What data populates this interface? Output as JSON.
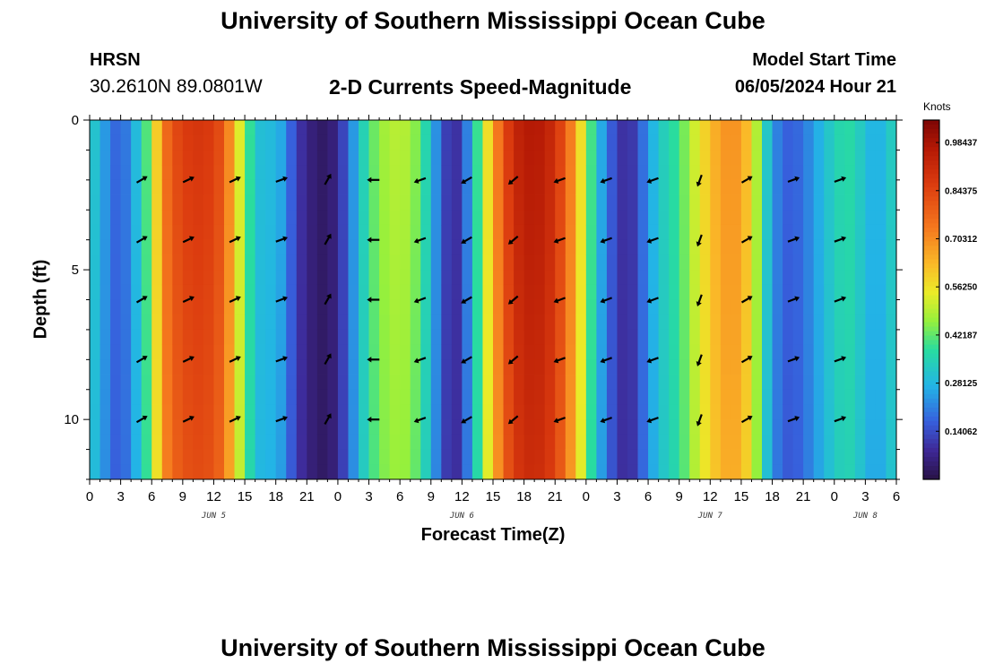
{
  "header": {
    "title": "University of Southern Mississippi Ocean Cube",
    "station": "HRSN",
    "coords": "30.2610N  89.0801W",
    "subtitle": "2-D Currents Speed-Magnitude",
    "start_label": "Model Start Time",
    "start_value": "06/05/2024 Hour 21"
  },
  "footer": {
    "title": "University of Southern Mississippi Ocean Cube"
  },
  "chart_data": {
    "type": "heatmap",
    "title": "2-D Currents Speed-Magnitude",
    "xlabel": "Forecast Time(Z)",
    "ylabel": "Depth (ft)",
    "units": "Knots",
    "x_hours_since_jun5_00z": [
      0,
      78
    ],
    "y_range_ft": [
      0,
      12
    ],
    "y_ticks": [
      "0",
      "5",
      "10"
    ],
    "y_tick_values": [
      0,
      5,
      10
    ],
    "x_tick_labels": [
      "0",
      "3",
      "6",
      "9",
      "12",
      "15",
      "18",
      "21",
      "0",
      "3",
      "6",
      "9",
      "12",
      "15",
      "18",
      "21",
      "0",
      "3",
      "6",
      "9",
      "12",
      "15",
      "18",
      "21",
      "0",
      "3",
      "6"
    ],
    "day_labels": [
      "JUN 5",
      "JUN 6",
      "JUN 7",
      "JUN 8"
    ],
    "day_label_hours": [
      12,
      36,
      60,
      75
    ],
    "colorbar": {
      "range": [
        0,
        1.05
      ],
      "labels": [
        "0.98437",
        "0.84375",
        "0.70312",
        "0.56250",
        "0.42187",
        "0.28125",
        "0.14062"
      ],
      "values": [
        0.98437,
        0.84375,
        0.70312,
        0.5625,
        0.42187,
        0.28125,
        0.14062
      ]
    },
    "speed_profile_surface": [
      [
        0,
        0.34
      ],
      [
        1,
        0.28
      ],
      [
        2,
        0.2
      ],
      [
        3,
        0.16
      ],
      [
        4,
        0.24
      ],
      [
        5,
        0.34
      ],
      [
        6,
        0.48
      ],
      [
        7,
        0.72
      ],
      [
        8,
        0.82
      ],
      [
        9,
        0.86
      ],
      [
        10,
        0.88
      ],
      [
        11,
        0.88
      ],
      [
        12,
        0.86
      ],
      [
        13,
        0.8
      ],
      [
        14,
        0.62
      ],
      [
        15,
        0.45
      ],
      [
        16,
        0.32
      ],
      [
        17,
        0.28
      ],
      [
        18,
        0.3
      ],
      [
        19,
        0.22
      ],
      [
        20,
        0.12
      ],
      [
        21,
        0.07
      ],
      [
        22,
        0.04
      ],
      [
        23,
        0.03
      ],
      [
        24,
        0.08
      ],
      [
        25,
        0.18
      ],
      [
        26,
        0.3
      ],
      [
        27,
        0.4
      ],
      [
        28,
        0.46
      ],
      [
        29,
        0.49
      ],
      [
        30,
        0.5
      ],
      [
        31,
        0.48
      ],
      [
        32,
        0.42
      ],
      [
        33,
        0.3
      ],
      [
        34,
        0.16
      ],
      [
        35,
        0.08
      ],
      [
        36,
        0.12
      ],
      [
        37,
        0.3
      ],
      [
        38,
        0.48
      ],
      [
        39,
        0.66
      ],
      [
        40,
        0.82
      ],
      [
        41,
        0.92
      ],
      [
        42,
        0.96
      ],
      [
        43,
        0.97
      ],
      [
        44,
        0.95
      ],
      [
        45,
        0.9
      ],
      [
        46,
        0.8
      ],
      [
        47,
        0.66
      ],
      [
        48,
        0.48
      ],
      [
        49,
        0.32
      ],
      [
        50,
        0.2
      ],
      [
        51,
        0.12
      ],
      [
        52,
        0.08
      ],
      [
        53,
        0.14
      ],
      [
        54,
        0.24
      ],
      [
        55,
        0.32
      ],
      [
        56,
        0.36
      ],
      [
        57,
        0.4
      ],
      [
        58,
        0.48
      ],
      [
        59,
        0.56
      ],
      [
        60,
        0.62
      ],
      [
        61,
        0.68
      ],
      [
        62,
        0.7
      ],
      [
        63,
        0.68
      ],
      [
        64,
        0.58
      ],
      [
        65,
        0.4
      ],
      [
        66,
        0.24
      ],
      [
        67,
        0.18
      ],
      [
        68,
        0.16
      ],
      [
        69,
        0.2
      ],
      [
        70,
        0.24
      ],
      [
        71,
        0.3
      ],
      [
        72,
        0.34
      ],
      [
        73,
        0.38
      ],
      [
        74,
        0.36
      ],
      [
        75,
        0.3
      ],
      [
        76,
        0.26
      ],
      [
        77,
        0.3
      ],
      [
        78,
        0.36
      ]
    ],
    "arrow_times_hours": [
      5,
      9.5,
      14,
      18.5,
      23,
      27.5,
      32,
      36.5,
      41,
      45.5,
      50,
      54.5,
      59,
      63.5,
      68,
      72.5
    ],
    "arrow_depths_ft": [
      2,
      4,
      6,
      8,
      10
    ],
    "arrow_directions_deg": [
      60,
      65,
      65,
      70,
      30,
      270,
      250,
      240,
      230,
      250,
      250,
      250,
      200,
      60,
      70,
      70
    ]
  }
}
